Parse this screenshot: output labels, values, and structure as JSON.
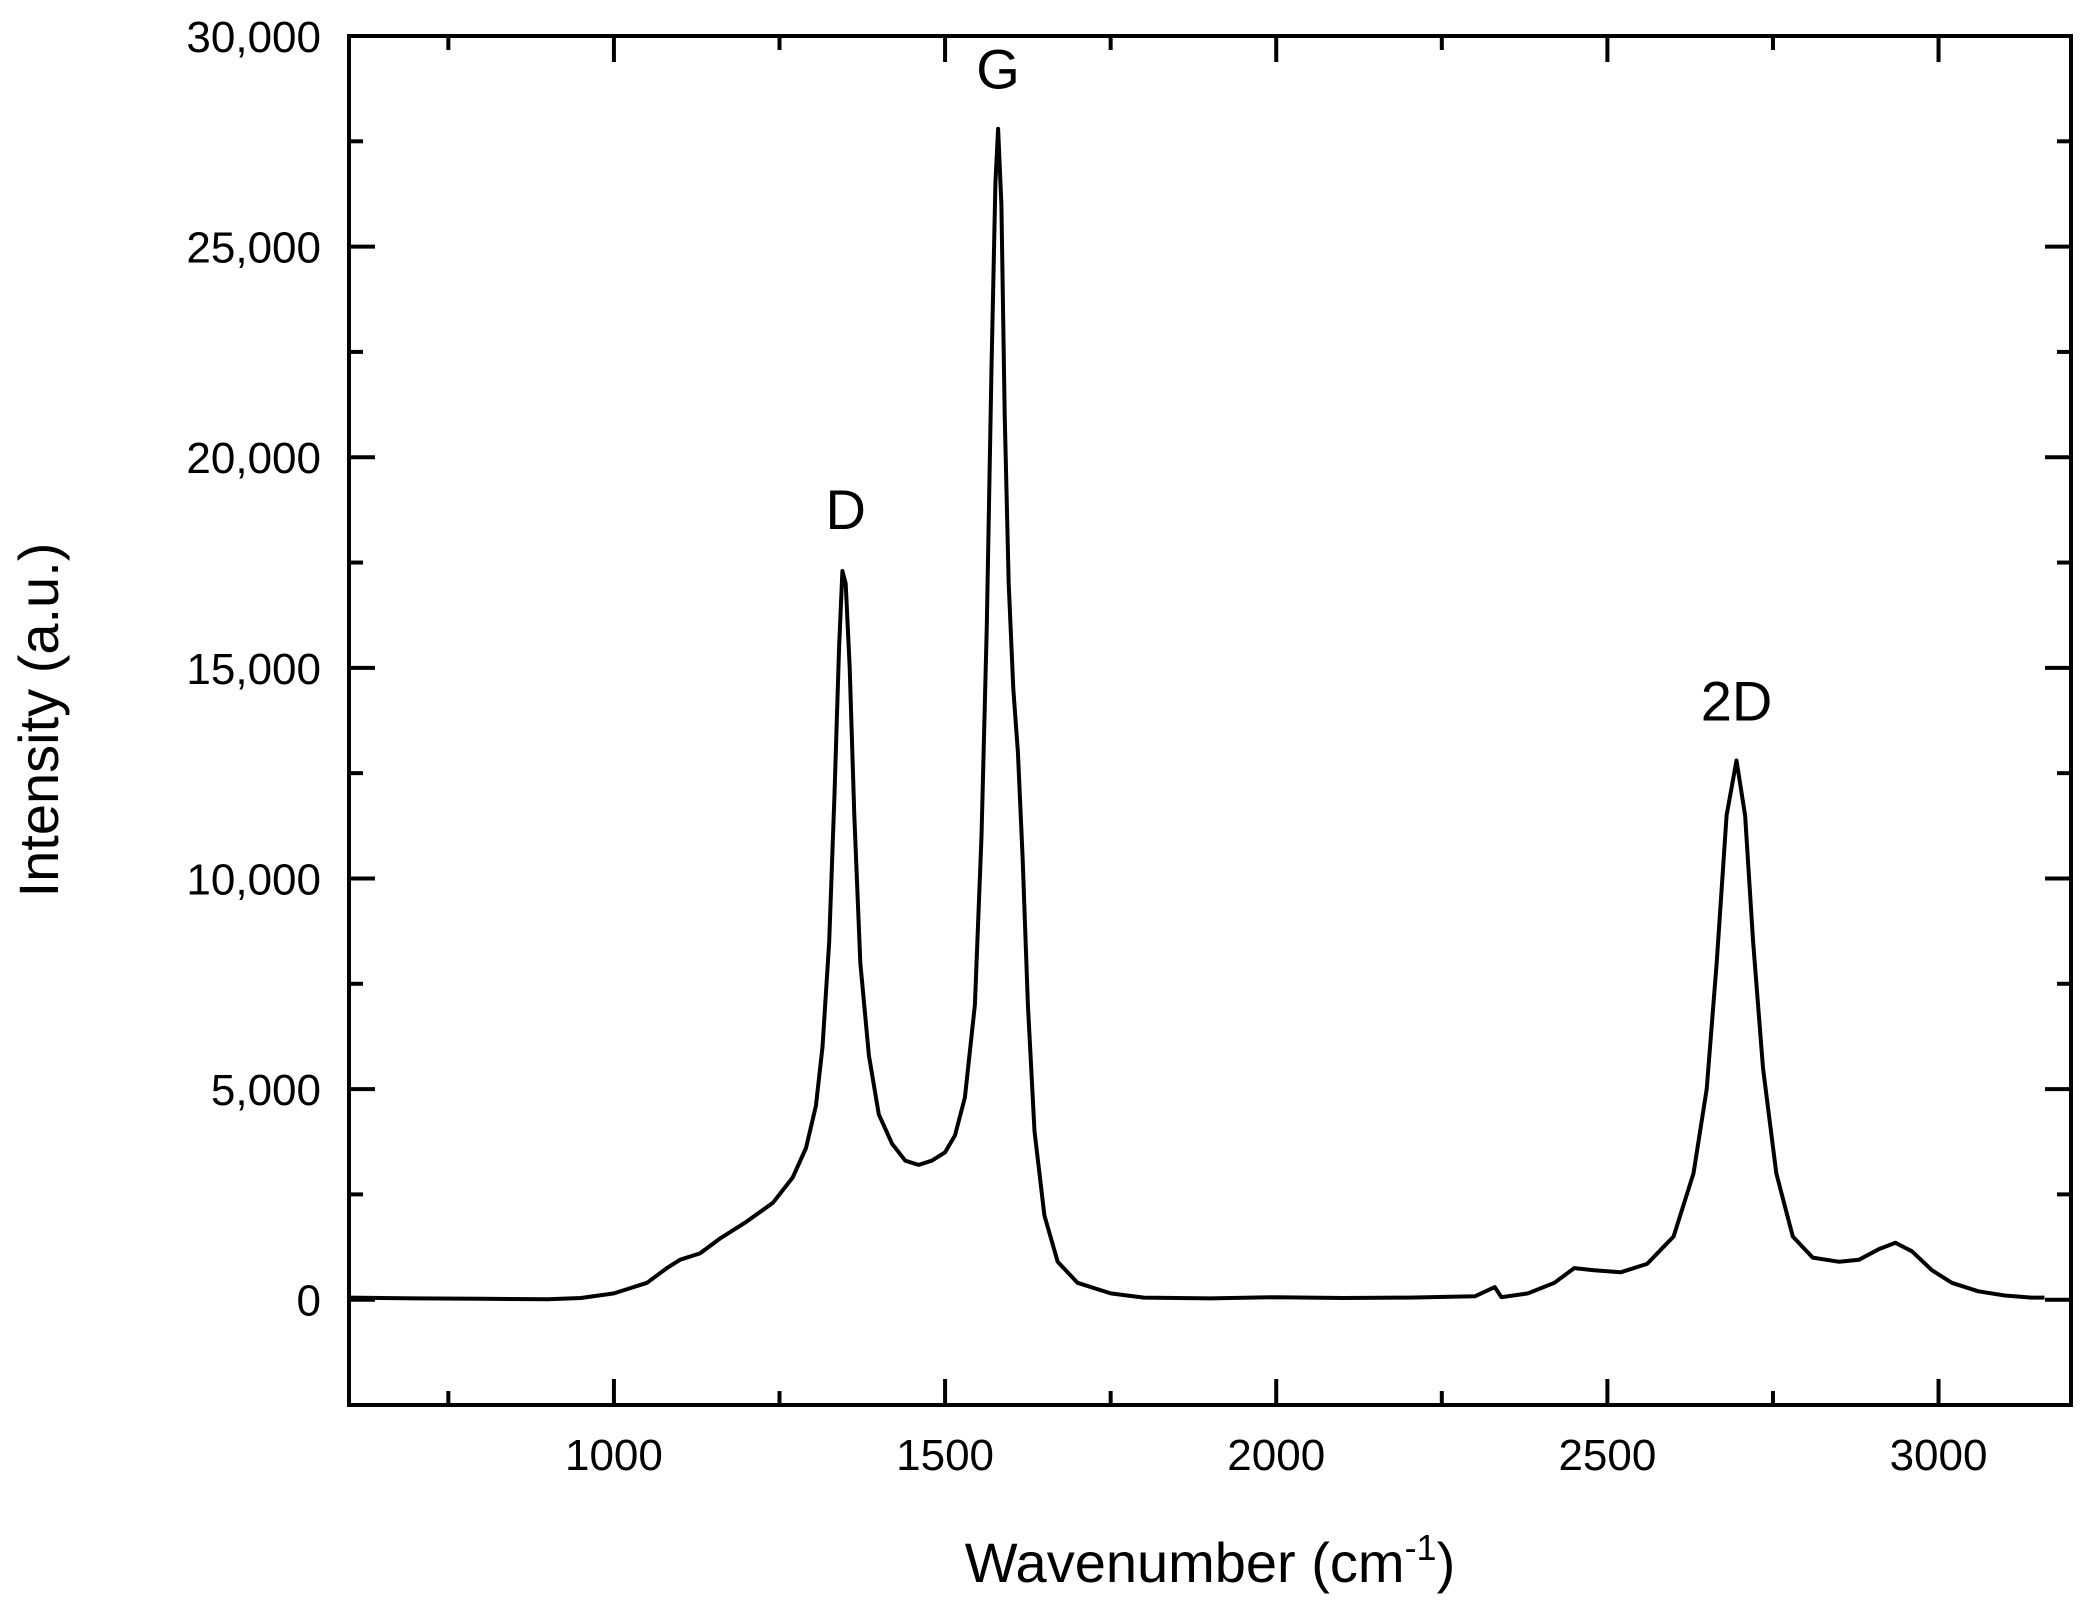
{
  "chart_data": {
    "type": "line",
    "xlabel": "Wavenumber (cm",
    "xlabel_sup": "-1",
    "xlabel_end": ")",
    "ylabel": "Intensity (a.u.)",
    "xlim": [
      600,
      3200
    ],
    "ylim": [
      -2500,
      30000
    ],
    "x_ticks": [
      1000,
      1500,
      2000,
      2500,
      3000
    ],
    "x_tick_labels": [
      "1000",
      "1500",
      "2000",
      "2500",
      "3000"
    ],
    "y_ticks": [
      0,
      5000,
      10000,
      15000,
      20000,
      25000,
      30000
    ],
    "y_tick_labels": [
      "0",
      "5,000",
      "10,000",
      "15,000",
      "20,000",
      "25,000",
      "30,000"
    ],
    "grid": false,
    "line_color": "#000000",
    "annotations": [
      {
        "text": "D",
        "x": 1350,
        "y": 17350
      },
      {
        "text": "G",
        "x": 1580,
        "y": 27800
      },
      {
        "text": "2D",
        "x": 2695,
        "y": 12800
      }
    ],
    "series": [
      {
        "points": [
          [
            600,
            50
          ],
          [
            700,
            30
          ],
          [
            800,
            20
          ],
          [
            900,
            10
          ],
          [
            950,
            40
          ],
          [
            1000,
            150
          ],
          [
            1050,
            400
          ],
          [
            1080,
            750
          ],
          [
            1100,
            950
          ],
          [
            1130,
            1100
          ],
          [
            1160,
            1450
          ],
          [
            1200,
            1850
          ],
          [
            1240,
            2300
          ],
          [
            1270,
            2900
          ],
          [
            1290,
            3600
          ],
          [
            1305,
            4600
          ],
          [
            1315,
            6000
          ],
          [
            1325,
            8500
          ],
          [
            1333,
            12000
          ],
          [
            1340,
            15500
          ],
          [
            1345,
            17300
          ],
          [
            1350,
            17000
          ],
          [
            1356,
            15000
          ],
          [
            1363,
            11500
          ],
          [
            1372,
            8000
          ],
          [
            1385,
            5800
          ],
          [
            1400,
            4400
          ],
          [
            1420,
            3700
          ],
          [
            1440,
            3300
          ],
          [
            1460,
            3200
          ],
          [
            1480,
            3300
          ],
          [
            1500,
            3500
          ],
          [
            1515,
            3900
          ],
          [
            1530,
            4800
          ],
          [
            1545,
            7000
          ],
          [
            1555,
            11000
          ],
          [
            1563,
            16000
          ],
          [
            1570,
            22000
          ],
          [
            1576,
            26500
          ],
          [
            1580,
            27800
          ],
          [
            1585,
            26000
          ],
          [
            1590,
            21000
          ],
          [
            1596,
            17000
          ],
          [
            1603,
            14500
          ],
          [
            1610,
            13000
          ],
          [
            1617,
            10500
          ],
          [
            1625,
            7000
          ],
          [
            1635,
            4000
          ],
          [
            1650,
            2000
          ],
          [
            1670,
            900
          ],
          [
            1700,
            400
          ],
          [
            1750,
            150
          ],
          [
            1800,
            50
          ],
          [
            1900,
            30
          ],
          [
            2000,
            60
          ],
          [
            2100,
            40
          ],
          [
            2200,
            50
          ],
          [
            2300,
            80
          ],
          [
            2330,
            300
          ],
          [
            2340,
            60
          ],
          [
            2380,
            150
          ],
          [
            2420,
            400
          ],
          [
            2450,
            750
          ],
          [
            2480,
            700
          ],
          [
            2520,
            650
          ],
          [
            2560,
            850
          ],
          [
            2600,
            1500
          ],
          [
            2630,
            3000
          ],
          [
            2650,
            5000
          ],
          [
            2665,
            8000
          ],
          [
            2680,
            11500
          ],
          [
            2695,
            12800
          ],
          [
            2708,
            11500
          ],
          [
            2720,
            8500
          ],
          [
            2735,
            5500
          ],
          [
            2755,
            3000
          ],
          [
            2780,
            1500
          ],
          [
            2810,
            1000
          ],
          [
            2850,
            900
          ],
          [
            2880,
            950
          ],
          [
            2910,
            1200
          ],
          [
            2935,
            1350
          ],
          [
            2960,
            1150
          ],
          [
            2990,
            700
          ],
          [
            3020,
            400
          ],
          [
            3060,
            200
          ],
          [
            3100,
            100
          ],
          [
            3140,
            50
          ],
          [
            3160,
            50
          ]
        ]
      }
    ]
  }
}
